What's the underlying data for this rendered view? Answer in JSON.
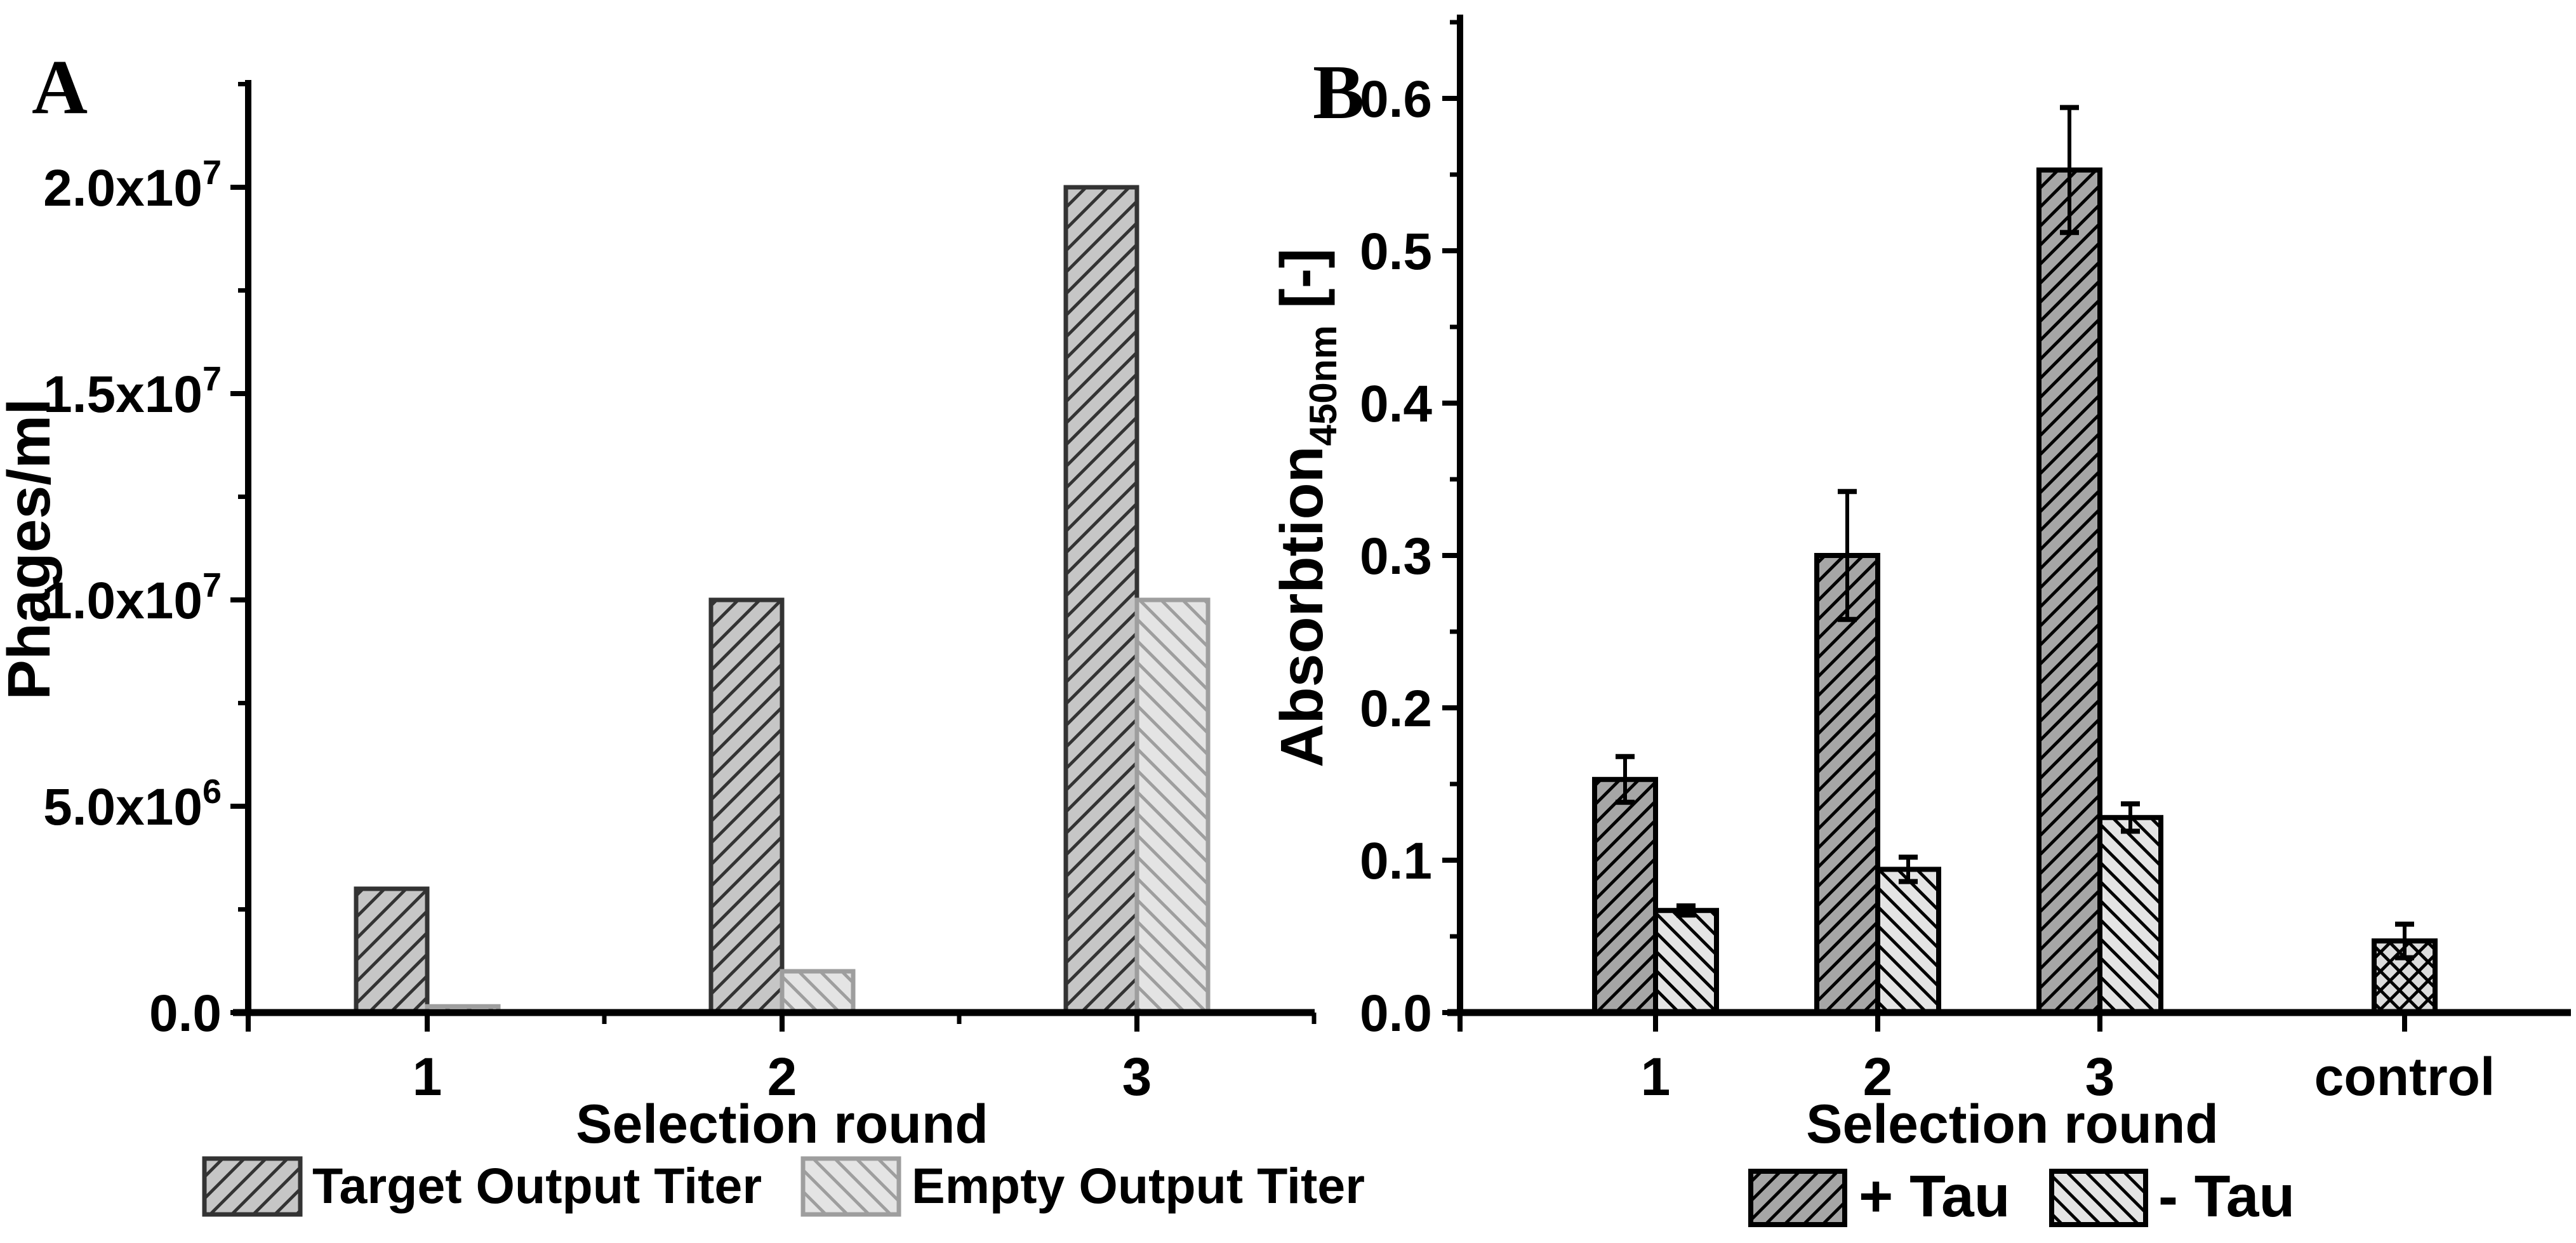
{
  "colors": {
    "background": "#ffffff",
    "axis": "#000000",
    "text": "#000000",
    "error_bar": "#000000"
  },
  "chart_data": [
    {
      "type": "bar",
      "panel_label": "A",
      "xlabel": "Selection round",
      "ylabel": "Phages/ml",
      "categories": [
        "1",
        "2",
        "3"
      ],
      "ylim": [
        0,
        22600000
      ],
      "grid": false,
      "legend_position": "bottom",
      "y_major_ticks": [
        {
          "value": 0,
          "label": "0.0"
        },
        {
          "value": 5000000,
          "label": "5.0x10",
          "sup": "6"
        },
        {
          "value": 10000000,
          "label": "1.0x10",
          "sup": "7"
        },
        {
          "value": 15000000,
          "label": "1.5x10",
          "sup": "7"
        },
        {
          "value": 20000000,
          "label": "2.0x10",
          "sup": "7"
        }
      ],
      "y_minor_step": 2500000,
      "y_major_step": 5000000,
      "series": [
        {
          "name": "Target Output Titer",
          "align": "left",
          "in_legend": true,
          "values": [
            3000000,
            10000000,
            20000000
          ],
          "fill": "#c6c6c6",
          "hatch": "up",
          "hatch_color": "#333333",
          "hatch_width": 5,
          "hatch_size": 34,
          "edge_color": "#333333"
        },
        {
          "name": "Empty Output Titer",
          "align": "right",
          "in_legend": true,
          "values": [
            150000,
            1000000,
            10000000
          ],
          "fill": "#e4e4e4",
          "hatch": "down",
          "hatch_color": "#9e9e9e",
          "hatch_width": 5,
          "hatch_size": 34,
          "edge_color": "#9e9e9e"
        }
      ]
    },
    {
      "type": "bar",
      "panel_label": "B",
      "xlabel": "Selection round",
      "ylabel": "Absorbtion",
      "ylabel_sub": "450nm",
      "ylabel_suffix": " [-]",
      "categories": [
        "1",
        "2",
        "3",
        "control"
      ],
      "ylim": [
        0,
        0.655
      ],
      "grid": false,
      "legend_position": "bottom",
      "y_major_ticks": [
        {
          "value": 0.0,
          "label": "0.0"
        },
        {
          "value": 0.1,
          "label": "0.1"
        },
        {
          "value": 0.2,
          "label": "0.2"
        },
        {
          "value": 0.3,
          "label": "0.3"
        },
        {
          "value": 0.4,
          "label": "0.4"
        },
        {
          "value": 0.5,
          "label": "0.5"
        },
        {
          "value": 0.6,
          "label": "0.6"
        }
      ],
      "y_minor_step": 0.05,
      "y_major_step": 0.1,
      "series": [
        {
          "name": "+ Tau",
          "align": "left",
          "in_legend": true,
          "values": [
            0.153,
            0.3,
            0.553,
            null
          ],
          "errors": [
            0.015,
            0.042,
            0.041,
            null
          ],
          "fill": "#a6a6a6",
          "hatch": "up",
          "hatch_color": "#000000",
          "hatch_width": 5,
          "hatch_size": 30,
          "edge_color": "#000000"
        },
        {
          "name": "- Tau",
          "align": "right",
          "in_legend": true,
          "values": [
            0.067,
            0.094,
            0.128,
            null
          ],
          "errors": [
            0.003,
            0.008,
            0.009,
            null
          ],
          "fill": "#e4e4e4",
          "hatch": "down",
          "hatch_color": "#000000",
          "hatch_width": 5,
          "hatch_size": 30,
          "edge_color": "#000000"
        },
        {
          "name": "control bar",
          "align": "center",
          "in_legend": false,
          "values": [
            null,
            null,
            null,
            0.047
          ],
          "errors": [
            null,
            null,
            null,
            0.011
          ],
          "fill": "#dcdcdc",
          "hatch": "cross",
          "hatch_color": "#000000",
          "hatch_width": 5,
          "hatch_size": 30,
          "edge_color": "#000000"
        }
      ]
    }
  ]
}
